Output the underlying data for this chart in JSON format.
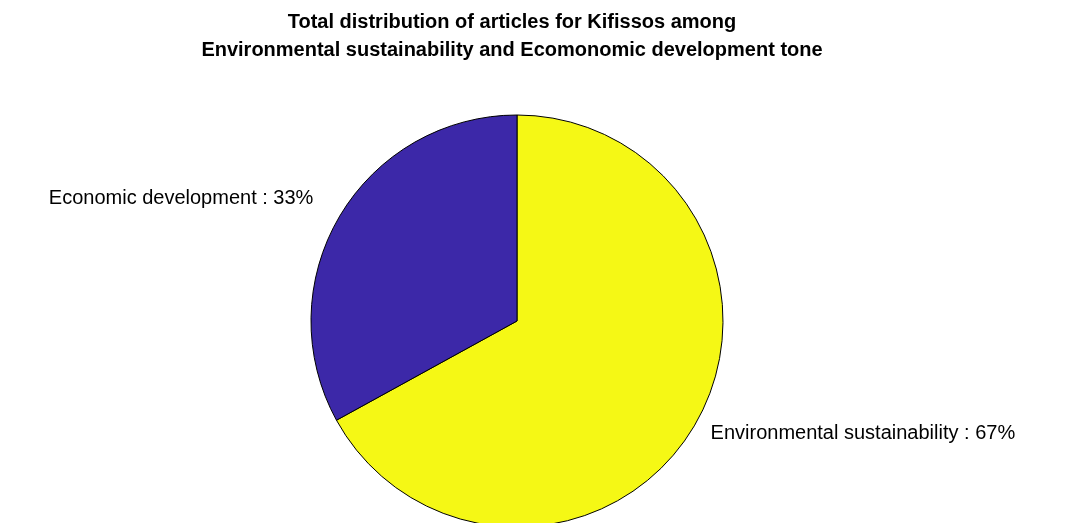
{
  "chart_data": {
    "type": "pie",
    "title": "Total distribution of articles for Kifissos among\nEnvironmental sustainability and Ecomonomic development tone",
    "categories": [
      "Environmental sustainability",
      "Economic development"
    ],
    "values": [
      67,
      33
    ],
    "colors": [
      "#f5f815",
      "#3c28a8"
    ],
    "value_labels": [
      "67%",
      "33%"
    ]
  }
}
